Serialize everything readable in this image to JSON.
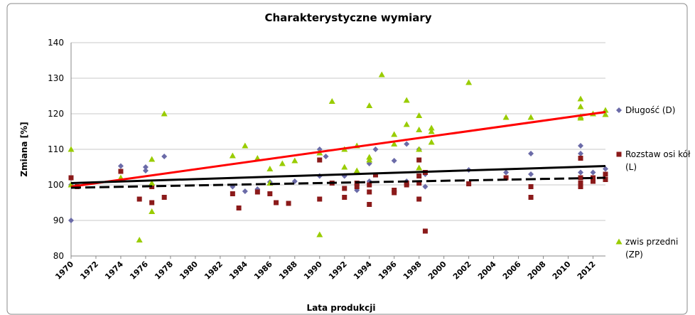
{
  "chart_data": {
    "type": "scatter",
    "title": "Charakterystyczne wymiary",
    "xlabel": "Lata produkcji",
    "ylabel": "Zmiana  [%]",
    "xlim": [
      1970,
      2013
    ],
    "xticks": [
      1970,
      1972,
      1974,
      1976,
      1978,
      1980,
      1982,
      1984,
      1986,
      1988,
      1990,
      1992,
      1994,
      1996,
      1998,
      2000,
      2002,
      2004,
      2006,
      2008,
      2010,
      2012
    ],
    "ylim": [
      80,
      140
    ],
    "yticks": [
      80,
      90,
      100,
      110,
      120,
      130,
      140
    ],
    "grid": true,
    "legend": "right",
    "series": [
      {
        "name": "Długość (D)",
        "color": "#6b6ba8",
        "marker": "diamond",
        "x": [
          1970,
          1970,
          1974,
          1976,
          1976,
          1977.5,
          1983,
          1984,
          1985,
          1986,
          1988,
          1990,
          1990,
          1990.5,
          1992,
          1993,
          1994,
          1994,
          1994.5,
          1996,
          1997,
          1997,
          1998,
          1998.5,
          1998.5,
          2002,
          2005,
          2007,
          2007,
          2011,
          2011,
          2011,
          2012,
          2013
        ],
        "values": [
          100,
          90,
          105.3,
          104,
          105,
          108,
          99.5,
          98.2,
          98.8,
          100.8,
          101,
          110,
          102.5,
          108,
          102.5,
          98.5,
          101,
          106,
          110,
          106.8,
          111.5,
          101,
          110,
          99.5,
          103,
          104.2,
          103.5,
          108.8,
          103,
          111,
          108.8,
          103.5,
          103.5,
          104.5
        ]
      },
      {
        "name": "Rozstaw osi kół (L)",
        "color": "#8b1a1a",
        "marker": "square",
        "x": [
          1970,
          1970.5,
          1974,
          1975.5,
          1976.5,
          1976.5,
          1977.5,
          1983,
          1983.5,
          1985,
          1986,
          1986.5,
          1987.5,
          1990,
          1990,
          1991,
          1992,
          1992,
          1993,
          1993,
          1994,
          1994,
          1994,
          1994.5,
          1996,
          1996,
          1997,
          1997,
          1998,
          1998,
          1998,
          1998,
          1998.5,
          1998.5,
          2002,
          2005,
          2007,
          2007,
          2011,
          2011,
          2011,
          2011,
          2012,
          2012,
          2013,
          2013
        ],
        "values": [
          102,
          99.5,
          103.8,
          96,
          95,
          99.5,
          96.5,
          97.5,
          93.5,
          98,
          97.5,
          95,
          94.8,
          107,
          96,
          100.5,
          99,
          96.5,
          100.5,
          99.5,
          94.5,
          98,
          100,
          102.8,
          97.8,
          98.5,
          100,
          100.5,
          107,
          102.5,
          96,
          100.5,
          87,
          103.5,
          100.3,
          102,
          96.5,
          99.5,
          107.5,
          102,
          99.5,
          100.5,
          101,
          102,
          101.5,
          103
        ]
      },
      {
        "name": "zwis przedni (ZP)",
        "color": "#99cc00",
        "marker": "triangle",
        "x": [
          1970,
          1970,
          1974,
          1975.5,
          1976.5,
          1976.5,
          1976.5,
          1977.5,
          1983,
          1984,
          1985,
          1986,
          1986,
          1987,
          1988,
          1990,
          1990,
          1991,
          1992,
          1992,
          1993,
          1993,
          1994,
          1994,
          1994,
          1995,
          1996,
          1996,
          1997,
          1997,
          1998,
          1998,
          1998,
          1998,
          1999,
          1999,
          1999,
          2002,
          2005,
          2007,
          2011,
          2011,
          2011,
          2011,
          2012,
          2013,
          2013
        ],
        "values": [
          110,
          100,
          102,
          84.5,
          107.2,
          92.5,
          100.5,
          120,
          108.2,
          111,
          107.5,
          104.5,
          100.5,
          106,
          106.8,
          109,
          86,
          123.5,
          110,
          105,
          111,
          104,
          122.3,
          107.8,
          107,
          131,
          114.2,
          111.5,
          123.8,
          117,
          119.5,
          115.5,
          110,
          104.8,
          116,
          115,
          112,
          128.8,
          119,
          119,
          124.2,
          122,
          119.2,
          118.8,
          120,
          121,
          119.8
        ]
      }
    ],
    "trendlines": [
      {
        "color": "#ff0000",
        "dash": false,
        "x": [
          1970,
          2013
        ],
        "values": [
          99.5,
          120.5
        ]
      },
      {
        "color": "#000000",
        "dash": false,
        "x": [
          1970,
          2013
        ],
        "values": [
          100.5,
          105.3
        ]
      },
      {
        "color": "#000000",
        "dash": true,
        "x": [
          1970,
          2013
        ],
        "values": [
          99.2,
          102
        ]
      }
    ]
  }
}
